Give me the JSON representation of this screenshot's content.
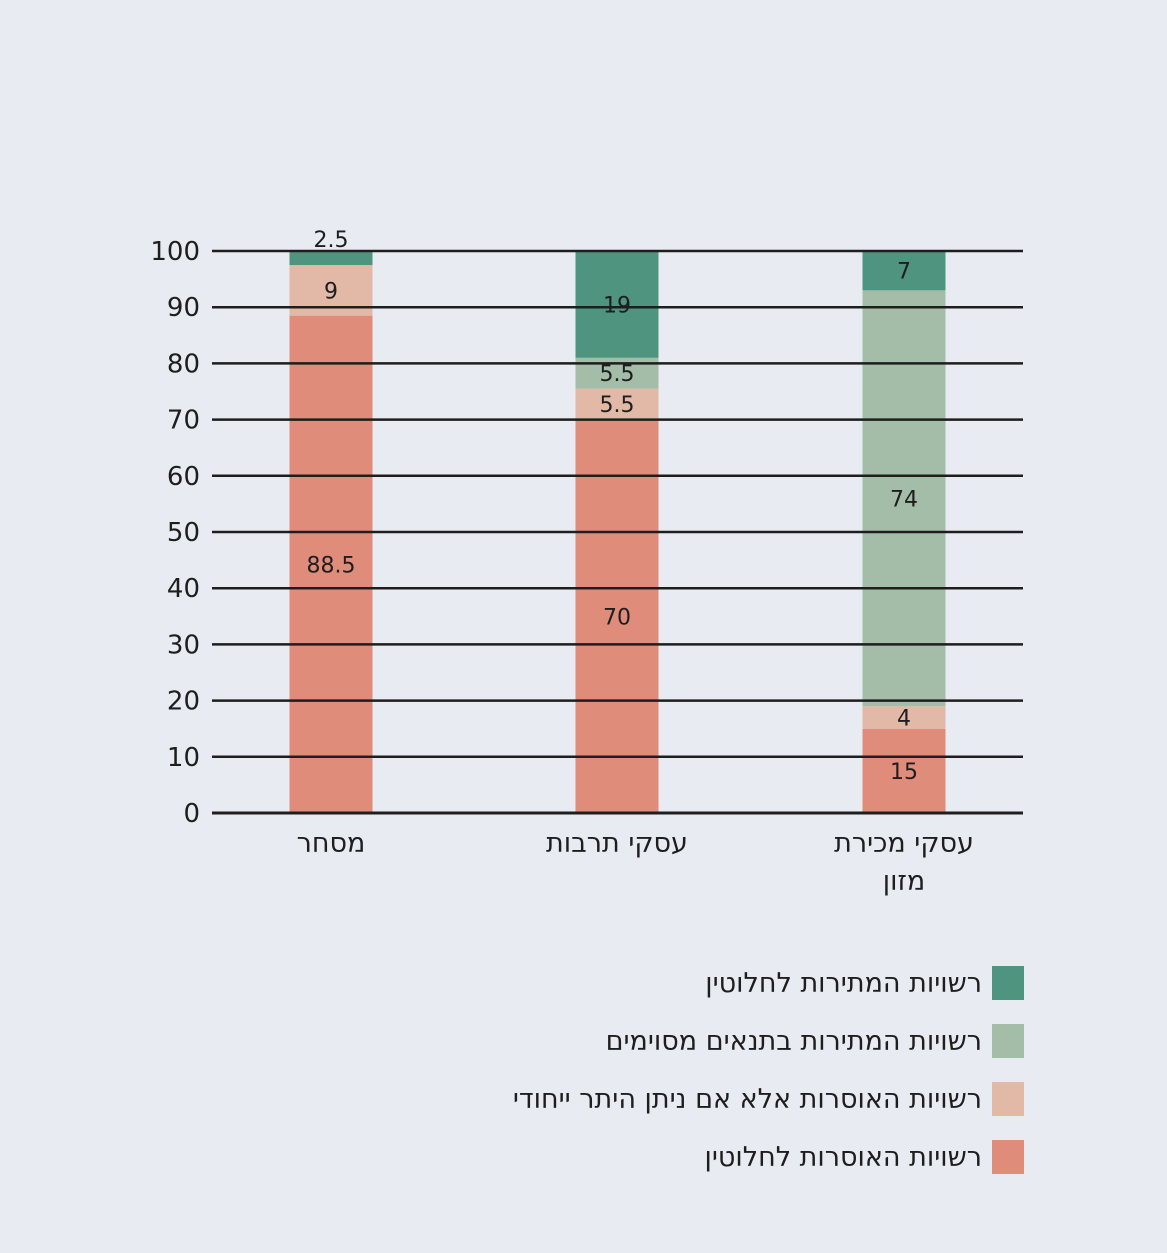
{
  "chart_data": {
    "type": "bar",
    "stacked": true,
    "categories": [
      "מסחר",
      "עסקי תרבות",
      "עסקי מכירת מזון"
    ],
    "category_lines": [
      [
        "מסחר"
      ],
      [
        "עסקי תרבות"
      ],
      [
        "עסקי מכירת",
        "מזון"
      ]
    ],
    "series": [
      {
        "name": "רשויות האוסרות לחלוטין",
        "color": "#e08c7b",
        "values": [
          88.5,
          70,
          15
        ]
      },
      {
        "name": "רשויות האוסרות אלא אם ניתן היתר ייחודי",
        "color": "#e2b9a6",
        "values": [
          9,
          5.5,
          4
        ]
      },
      {
        "name": "רשויות המתירות בתנאים מסוימים",
        "color": "#a3bda9",
        "values": [
          0,
          5.5,
          74
        ]
      },
      {
        "name": "רשויות המתירות לחלוטין",
        "color": "#4e947f",
        "values": [
          2.5,
          19,
          7
        ]
      }
    ],
    "ylim": [
      0,
      100
    ],
    "yticks": [
      0,
      10,
      20,
      30,
      40,
      50,
      60,
      70,
      80,
      90,
      100
    ],
    "title": "",
    "xlabel": "",
    "ylabel": "",
    "grid": true,
    "legend_position": "bottom-right",
    "legend_order": [
      3,
      2,
      1,
      0
    ]
  }
}
